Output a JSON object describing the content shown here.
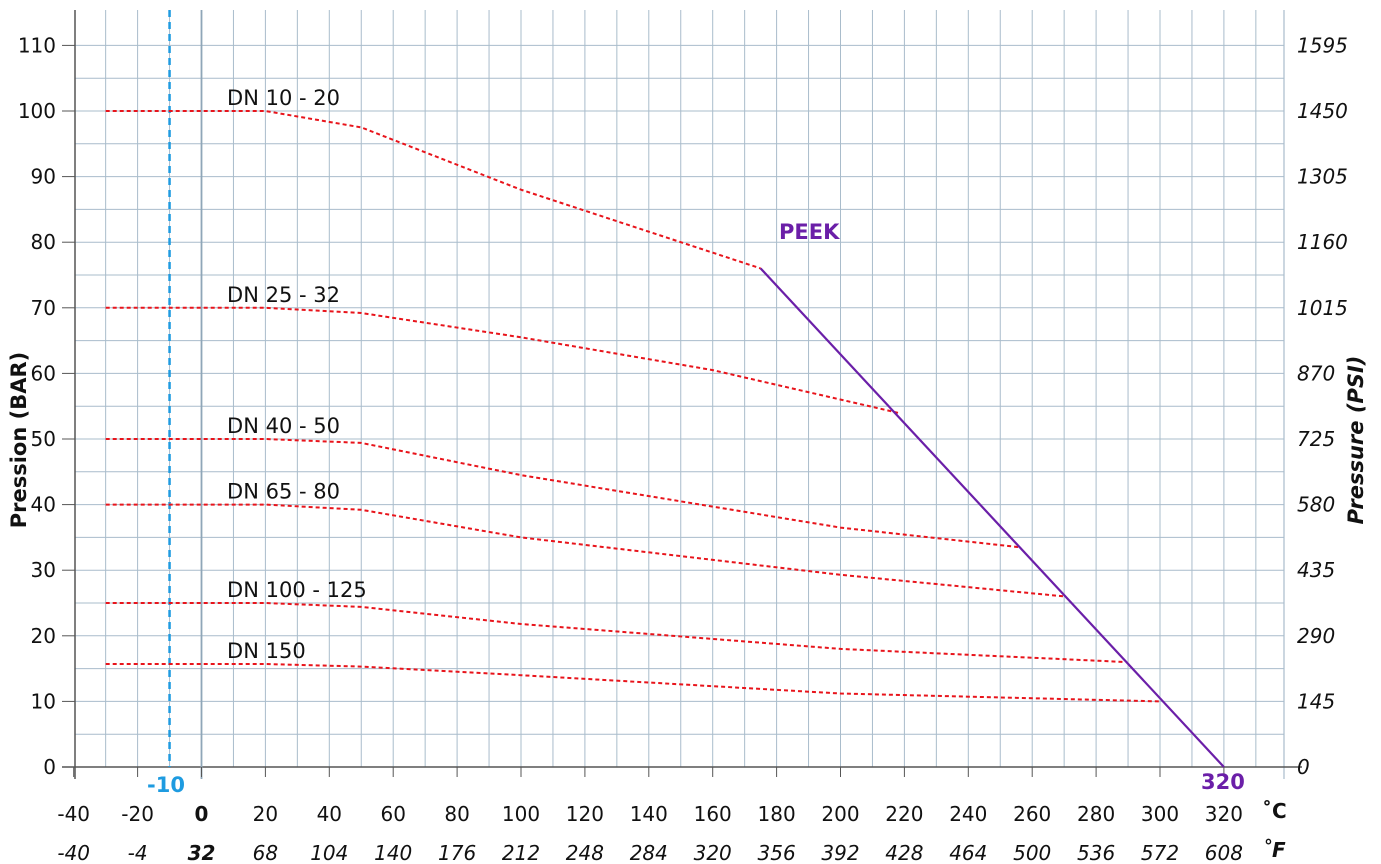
{
  "chart_data": {
    "type": "line",
    "title": "",
    "ylabel_left": "Pression (BAR)",
    "ylabel_right": "Pressure (PSI)",
    "x_unit_c": "˚C",
    "x_unit_f": "˚F",
    "xlim_c": [
      -40,
      330
    ],
    "ylim_bar": [
      0,
      113
    ],
    "grid": true,
    "x_ticks_c": [
      "-40",
      "-20",
      "0",
      "20",
      "40",
      "60",
      "80",
      "100",
      "120",
      "140",
      "160",
      "180",
      "200",
      "220",
      "240",
      "260",
      "280",
      "300",
      "320"
    ],
    "x_ticks_f": [
      "-40",
      "-4",
      "32",
      "68",
      "104",
      "140",
      "176",
      "212",
      "248",
      "284",
      "320",
      "356",
      "392",
      "428",
      "464",
      "500",
      "536",
      "572",
      "608"
    ],
    "y_ticks_bar": [
      "0",
      "10",
      "20",
      "30",
      "40",
      "50",
      "60",
      "70",
      "80",
      "90",
      "100",
      "110"
    ],
    "y_ticks_psi": [
      "0",
      "145",
      "290",
      "435",
      "580",
      "725",
      "870",
      "1015",
      "1160",
      "1305",
      "1450",
      "1595"
    ],
    "reference_line": {
      "label": "-10",
      "x": -10,
      "color": "#1e9be0"
    },
    "series": [
      {
        "name": "DN 10 - 20",
        "color": "#e8141b",
        "points": [
          [
            -30,
            100
          ],
          [
            20,
            100
          ],
          [
            50,
            97.5
          ],
          [
            100,
            88
          ],
          [
            175,
            76
          ]
        ]
      },
      {
        "name": "DN 25 - 32",
        "color": "#e8141b",
        "points": [
          [
            -30,
            70
          ],
          [
            20,
            70
          ],
          [
            50,
            69.2
          ],
          [
            100,
            65.5
          ],
          [
            160,
            60.5
          ],
          [
            218,
            54
          ]
        ]
      },
      {
        "name": "DN 40 - 50",
        "color": "#e8141b",
        "points": [
          [
            -30,
            50
          ],
          [
            20,
            50
          ],
          [
            50,
            49.4
          ],
          [
            100,
            44.5
          ],
          [
            200,
            36.5
          ],
          [
            256,
            33.5
          ]
        ]
      },
      {
        "name": "DN 65 - 80",
        "color": "#e8141b",
        "points": [
          [
            -30,
            40
          ],
          [
            20,
            40
          ],
          [
            50,
            39.2
          ],
          [
            100,
            35
          ],
          [
            200,
            29.3
          ],
          [
            270,
            26
          ]
        ]
      },
      {
        "name": "DN 100 - 125",
        "color": "#e8141b",
        "points": [
          [
            -30,
            25
          ],
          [
            20,
            25
          ],
          [
            50,
            24.4
          ],
          [
            100,
            21.8
          ],
          [
            200,
            18
          ],
          [
            289,
            16
          ]
        ]
      },
      {
        "name": "DN 150",
        "color": "#e8141b",
        "points": [
          [
            -30,
            15.7
          ],
          [
            20,
            15.7
          ],
          [
            50,
            15.3
          ],
          [
            100,
            14
          ],
          [
            200,
            11.2
          ],
          [
            300,
            10
          ]
        ]
      }
    ],
    "peek_line": {
      "name": "PEEK",
      "end_label": "320",
      "color": "#6b1fa8",
      "points": [
        [
          175,
          76
        ],
        [
          320,
          0
        ]
      ]
    }
  }
}
